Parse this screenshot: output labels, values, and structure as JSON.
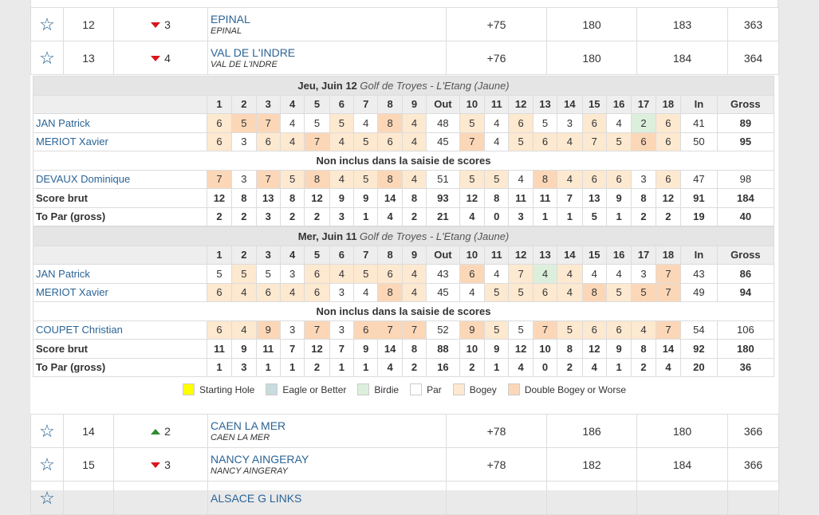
{
  "legend": [
    {
      "label": "Starting Hole",
      "color": "#ffff00"
    },
    {
      "label": "Eagle or Better",
      "color": "#c7dcdc"
    },
    {
      "label": "Birdie",
      "color": "#dcefdc"
    },
    {
      "label": "Par",
      "color": "#ffffff"
    },
    {
      "label": "Bogey",
      "color": "#fde8d0"
    },
    {
      "label": "Double Bogey or Worse",
      "color": "#fbd7b8"
    }
  ],
  "rounds": [
    {
      "date": "Jeu, Juin 12",
      "course": "Golf de Troyes - L'Etang (Jaune)",
      "headers": [
        "1",
        "2",
        "3",
        "4",
        "5",
        "6",
        "7",
        "8",
        "9",
        "Out",
        "10",
        "11",
        "12",
        "13",
        "14",
        "15",
        "16",
        "17",
        "18",
        "In",
        "Gross"
      ],
      "included": [
        {
          "name": "JAN Patrick",
          "scores": [
            "6",
            "5",
            "7",
            "4",
            "5",
            "5",
            "4",
            "8",
            "4",
            "48",
            "5",
            "4",
            "6",
            "5",
            "3",
            "6",
            "4",
            "2",
            "6",
            "41",
            "89"
          ],
          "classes": [
            "bogey",
            "dbl",
            "dbl",
            "",
            "",
            "bogey",
            "",
            "dbl",
            "bogey",
            "",
            "bogey",
            "",
            "bogey",
            "",
            "",
            "bogey",
            "",
            "birdie",
            "bogey",
            "",
            ""
          ]
        },
        {
          "name": "MERIOT Xavier",
          "scores": [
            "6",
            "3",
            "6",
            "4",
            "7",
            "4",
            "5",
            "6",
            "4",
            "45",
            "7",
            "4",
            "5",
            "6",
            "4",
            "7",
            "5",
            "6",
            "6",
            "50",
            "95"
          ],
          "classes": [
            "bogey",
            "",
            "bogey",
            "bogey",
            "dbl",
            "bogey",
            "bogey",
            "bogey",
            "bogey",
            "",
            "dbl",
            "",
            "bogey",
            "bogey",
            "bogey",
            "bogey",
            "bogey",
            "dbl",
            "bogey",
            "",
            ""
          ]
        }
      ],
      "not_included_label": "Non inclus dans la saisie de scores",
      "excluded": [
        {
          "name": "DEVAUX Dominique",
          "scores": [
            "7",
            "3",
            "7",
            "5",
            "8",
            "4",
            "5",
            "8",
            "4",
            "51",
            "5",
            "5",
            "4",
            "8",
            "4",
            "6",
            "6",
            "3",
            "6",
            "47",
            "98"
          ],
          "classes": [
            "dbl",
            "",
            "dbl",
            "bogey",
            "dbl",
            "bogey",
            "bogey",
            "dbl",
            "bogey",
            "",
            "bogey",
            "bogey",
            "",
            "dbl",
            "bogey",
            "bogey",
            "bogey",
            "",
            "bogey",
            "",
            ""
          ]
        }
      ],
      "score_brut": {
        "label": "Score brut",
        "values": [
          "12",
          "8",
          "13",
          "8",
          "12",
          "9",
          "9",
          "14",
          "8",
          "93",
          "12",
          "8",
          "11",
          "11",
          "7",
          "13",
          "9",
          "8",
          "12",
          "91",
          "184"
        ]
      },
      "to_par": {
        "label": "To Par (gross)",
        "values": [
          "2",
          "2",
          "3",
          "2",
          "2",
          "3",
          "1",
          "4",
          "2",
          "21",
          "4",
          "0",
          "3",
          "1",
          "1",
          "5",
          "1",
          "2",
          "2",
          "19",
          "40"
        ]
      }
    },
    {
      "date": "Mer, Juin 11",
      "course": "Golf de Troyes - L'Etang (Jaune)",
      "headers": [
        "1",
        "2",
        "3",
        "4",
        "5",
        "6",
        "7",
        "8",
        "9",
        "Out",
        "10",
        "11",
        "12",
        "13",
        "14",
        "15",
        "16",
        "17",
        "18",
        "In",
        "Gross"
      ],
      "included": [
        {
          "name": "JAN Patrick",
          "scores": [
            "5",
            "5",
            "5",
            "3",
            "6",
            "4",
            "5",
            "6",
            "4",
            "43",
            "6",
            "4",
            "7",
            "4",
            "4",
            "4",
            "4",
            "3",
            "7",
            "43",
            "86"
          ],
          "classes": [
            "",
            "bogey",
            "",
            "",
            "bogey",
            "bogey",
            "bogey",
            "bogey",
            "bogey",
            "",
            "dbl",
            "",
            "bogey",
            "birdie",
            "bogey",
            "",
            "",
            "",
            "dbl",
            "",
            ""
          ]
        },
        {
          "name": "MERIOT Xavier",
          "scores": [
            "6",
            "4",
            "6",
            "4",
            "6",
            "3",
            "4",
            "8",
            "4",
            "45",
            "4",
            "5",
            "5",
            "6",
            "4",
            "8",
            "5",
            "5",
            "7",
            "49",
            "94"
          ],
          "classes": [
            "bogey",
            "bogey",
            "bogey",
            "bogey",
            "bogey",
            "",
            "",
            "dbl",
            "bogey",
            "",
            "",
            "bogey",
            "bogey",
            "bogey",
            "bogey",
            "dbl",
            "bogey",
            "dbl",
            "dbl",
            "",
            ""
          ]
        }
      ],
      "not_included_label": "Non inclus dans la saisie de scores",
      "excluded": [
        {
          "name": "COUPET Christian",
          "scores": [
            "6",
            "4",
            "9",
            "3",
            "7",
            "3",
            "6",
            "7",
            "7",
            "52",
            "9",
            "5",
            "5",
            "7",
            "5",
            "6",
            "6",
            "4",
            "7",
            "54",
            "106"
          ],
          "classes": [
            "bogey",
            "bogey",
            "dbl",
            "",
            "dbl",
            "",
            "dbl",
            "dbl",
            "dbl",
            "",
            "dbl",
            "bogey",
            "",
            "dbl",
            "bogey",
            "bogey",
            "bogey",
            "bogey",
            "dbl",
            "",
            ""
          ]
        }
      ],
      "score_brut": {
        "label": "Score brut",
        "values": [
          "11",
          "9",
          "11",
          "7",
          "12",
          "7",
          "9",
          "14",
          "8",
          "88",
          "10",
          "9",
          "12",
          "10",
          "8",
          "12",
          "9",
          "8",
          "14",
          "92",
          "180"
        ]
      },
      "to_par": {
        "label": "To Par (gross)",
        "values": [
          "1",
          "3",
          "1",
          "1",
          "2",
          "1",
          "1",
          "4",
          "2",
          "16",
          "2",
          "1",
          "4",
          "0",
          "2",
          "4",
          "1",
          "2",
          "4",
          "20",
          "36"
        ]
      }
    }
  ],
  "teams_top": [
    {
      "pos": "12",
      "dir": "down",
      "move": "3",
      "name": "EPINAL",
      "sub": "EPINAL",
      "par": "+75",
      "r1": "180",
      "r2": "183",
      "total": "363"
    },
    {
      "pos": "13",
      "dir": "down",
      "move": "4",
      "name": "VAL DE L'INDRE",
      "sub": "VAL DE L'INDRE",
      "par": "+76",
      "r1": "180",
      "r2": "184",
      "total": "364"
    }
  ],
  "teams_bottom": [
    {
      "pos": "14",
      "dir": "up",
      "move": "2",
      "name": "CAEN LA MER",
      "sub": "CAEN LA MER",
      "par": "+78",
      "r1": "186",
      "r2": "180",
      "total": "366"
    },
    {
      "pos": "15",
      "dir": "down",
      "move": "3",
      "name": "NANCY AINGERAY",
      "sub": "NANCY AINGERAY",
      "par": "+78",
      "r1": "182",
      "r2": "184",
      "total": "366"
    },
    {
      "pos": "",
      "dir": "",
      "move": "",
      "name": "ALSACE G LINKS",
      "sub": "",
      "par": "",
      "r1": "",
      "r2": "",
      "total": ""
    }
  ]
}
